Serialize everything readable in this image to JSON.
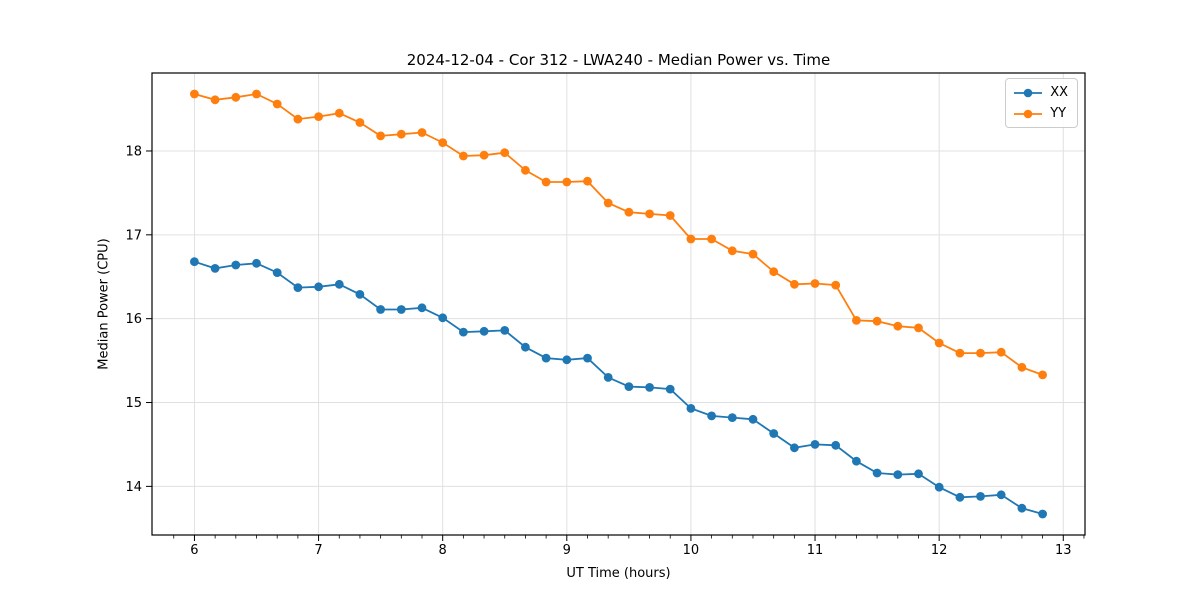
{
  "figure": {
    "background": "#ffffff"
  },
  "colors": {
    "grid": "#e0e0e0",
    "spine": "#000000",
    "text": "#000000",
    "legend_border": "#cccccc",
    "series_xx": "#1f77b4",
    "series_yy": "#ff7f0e"
  },
  "chart_data": {
    "type": "line",
    "title": "2024-12-04 - Cor 312 - LWA240 - Median Power vs. Time",
    "xlabel": "UT Time (hours)",
    "ylabel": "Median Power (CPU)",
    "xlim": [
      5.658,
      13.175
    ],
    "ylim": [
      13.42,
      18.93
    ],
    "x_ticks": [
      6,
      7,
      8,
      9,
      10,
      11,
      12,
      13
    ],
    "y_ticks": [
      14,
      15,
      16,
      17,
      18
    ],
    "x_minor_tick_step": 0.16667,
    "grid": true,
    "legend_position": "upper right",
    "marker": "o",
    "x": [
      6.0,
      6.1667,
      6.3333,
      6.5,
      6.6667,
      6.8333,
      7.0,
      7.1667,
      7.3333,
      7.5,
      7.6667,
      7.8333,
      8.0,
      8.1667,
      8.3333,
      8.5,
      8.6667,
      8.8333,
      9.0,
      9.1667,
      9.3333,
      9.5,
      9.6667,
      9.8333,
      10.0,
      10.1667,
      10.3333,
      10.5,
      10.6667,
      10.8333,
      11.0,
      11.1667,
      11.3333,
      11.5,
      11.6667,
      11.8333,
      12.0,
      12.1667,
      12.3333,
      12.5,
      12.6667,
      12.8333
    ],
    "series": [
      {
        "name": "XX",
        "color": "#1f77b4",
        "values": [
          16.68,
          16.6,
          16.64,
          16.66,
          16.55,
          16.37,
          16.38,
          16.41,
          16.29,
          16.11,
          16.11,
          16.13,
          16.01,
          15.84,
          15.85,
          15.86,
          15.66,
          15.53,
          15.51,
          15.53,
          15.3,
          15.19,
          15.18,
          15.16,
          14.93,
          14.84,
          14.82,
          14.8,
          14.63,
          14.46,
          14.5,
          14.49,
          14.3,
          14.16,
          14.14,
          14.15,
          13.99,
          13.87,
          13.88,
          13.9,
          13.74,
          13.67
        ]
      },
      {
        "name": "YY",
        "color": "#ff7f0e",
        "values": [
          18.68,
          18.61,
          18.64,
          18.68,
          18.56,
          18.38,
          18.41,
          18.45,
          18.34,
          18.18,
          18.2,
          18.22,
          18.1,
          17.94,
          17.95,
          17.98,
          17.77,
          17.63,
          17.63,
          17.64,
          17.38,
          17.27,
          17.25,
          17.23,
          16.95,
          16.95,
          16.81,
          16.77,
          16.56,
          16.41,
          16.42,
          16.4,
          15.98,
          15.97,
          15.91,
          15.89,
          15.71,
          15.59,
          15.59,
          15.6,
          15.42,
          15.33
        ]
      }
    ]
  }
}
